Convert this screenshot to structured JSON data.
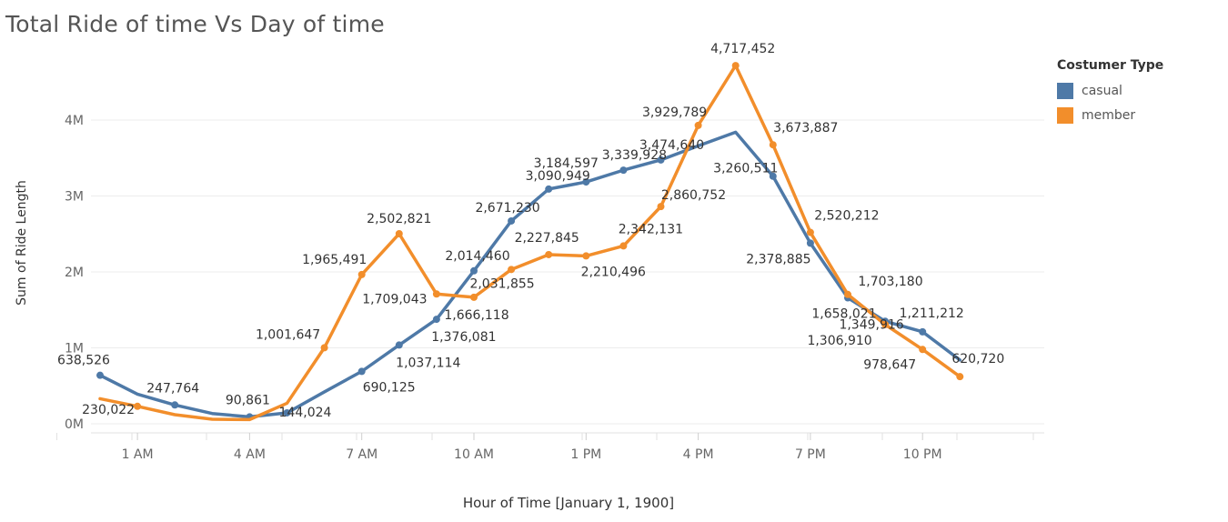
{
  "chart_data": {
    "type": "line",
    "title": "Total Ride of time Vs Day of time",
    "xlabel": "Hour of Time [January 1, 1900]",
    "ylabel": "Sum of Ride Length",
    "x_tick_labels": [
      "1 AM",
      "4 AM",
      "7 AM",
      "10 AM",
      "1 PM",
      "4 PM",
      "7 PM",
      "10 PM"
    ],
    "y_tick_labels": [
      "0M",
      "1M",
      "2M",
      "3M",
      "4M"
    ],
    "ylim": [
      0,
      5000000
    ],
    "grid": true,
    "legend_title": "Costumer Type",
    "legend_position": "top-right",
    "x": [
      "12 AM",
      "1 AM",
      "2 AM",
      "3 AM",
      "4 AM",
      "5 AM",
      "6 AM",
      "7 AM",
      "8 AM",
      "9 AM",
      "10 AM",
      "11 AM",
      "12 PM",
      "1 PM",
      "2 PM",
      "3 PM",
      "4 PM",
      "5 PM",
      "6 PM",
      "7 PM",
      "8 PM",
      "9 PM",
      "10 PM",
      "11 PM"
    ],
    "series": [
      {
        "name": "casual",
        "color": "#4e79a7",
        "values": [
          638526,
          390000,
          247764,
          135000,
          90861,
          144024,
          420000,
          690125,
          1037114,
          1376081,
          2014460,
          2671230,
          3090949,
          3184597,
          3339928,
          3474640,
          3660000,
          3840000,
          3260511,
          2378885,
          1658021,
          1349916,
          1211212,
          840000
        ],
        "labels": [
          "638,526",
          null,
          "247,764",
          null,
          "90,861",
          "144,024",
          null,
          "690,125",
          "1,037,114",
          "1,376,081",
          "2,014,460",
          "2,671,230",
          "3,090,949",
          "3,184,597",
          "3,339,928",
          "3,474,640",
          null,
          null,
          "3,260,511",
          "2,378,885",
          "1,658,021",
          "1,349,916",
          "1,211,212",
          null
        ]
      },
      {
        "name": "member",
        "color": "#f28e2b",
        "values": [
          330000,
          230022,
          120000,
          60000,
          55000,
          270000,
          1001647,
          1965491,
          2502821,
          1709043,
          1666118,
          2031855,
          2227845,
          2210496,
          2342131,
          2860752,
          3929789,
          4717452,
          3673887,
          2520212,
          1703180,
          1306910,
          978647,
          620720
        ],
        "labels": [
          null,
          "230,022",
          null,
          null,
          null,
          null,
          "1,001,647",
          "1,965,491",
          "2,502,821",
          "1,709,043",
          "1,666,118",
          "2,031,855",
          "2,227,845",
          "2,210,496",
          "2,342,131",
          "2,860,752",
          "3,929,789",
          "4,717,452",
          "3,673,887",
          "2,520,212",
          "1,703,180",
          "1,306,910",
          "978,647",
          "620,720"
        ]
      }
    ]
  }
}
